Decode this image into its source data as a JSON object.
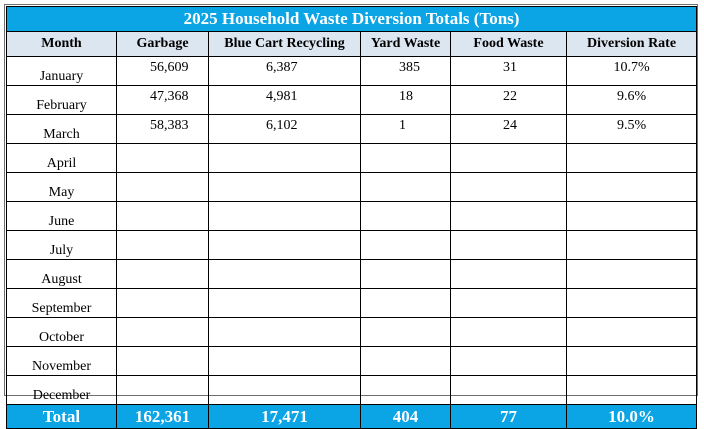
{
  "title": "2025 Household Waste Diversion Totals (Tons)",
  "columns": [
    "Month",
    "Garbage",
    "Blue Cart Recycling",
    "Yard Waste",
    "Food Waste",
    "Diversion Rate"
  ],
  "rows": [
    {
      "month": "January",
      "garbage": "56,609",
      "blue": "6,387",
      "yard": "385",
      "food": "31",
      "rate": "10.7%"
    },
    {
      "month": "February",
      "garbage": "47,368",
      "blue": "4,981",
      "yard": "18",
      "food": "22",
      "rate": "9.6%"
    },
    {
      "month": "March",
      "garbage": "58,383",
      "blue": "6,102",
      "yard": "1",
      "food": "24",
      "rate": "9.5%"
    },
    {
      "month": "April",
      "garbage": "",
      "blue": "",
      "yard": "",
      "food": "",
      "rate": ""
    },
    {
      "month": "May",
      "garbage": "",
      "blue": "",
      "yard": "",
      "food": "",
      "rate": ""
    },
    {
      "month": "June",
      "garbage": "",
      "blue": "",
      "yard": "",
      "food": "",
      "rate": ""
    },
    {
      "month": "July",
      "garbage": "",
      "blue": "",
      "yard": "",
      "food": "",
      "rate": ""
    },
    {
      "month": "August",
      "garbage": "",
      "blue": "",
      "yard": "",
      "food": "",
      "rate": ""
    },
    {
      "month": "September",
      "garbage": "",
      "blue": "",
      "yard": "",
      "food": "",
      "rate": ""
    },
    {
      "month": "October",
      "garbage": "",
      "blue": "",
      "yard": "",
      "food": "",
      "rate": ""
    },
    {
      "month": "November",
      "garbage": "",
      "blue": "",
      "yard": "",
      "food": "",
      "rate": ""
    },
    {
      "month": "December",
      "garbage": "",
      "blue": "",
      "yard": "",
      "food": "",
      "rate": ""
    }
  ],
  "total": {
    "label": "Total",
    "garbage": "162,361",
    "blue": "17,471",
    "yard": "404",
    "food": "77",
    "rate": "10.0%"
  },
  "colors": {
    "accent": "#0ba4e4",
    "header_fill": "#dce6f1",
    "title_text": "#ffffff"
  }
}
